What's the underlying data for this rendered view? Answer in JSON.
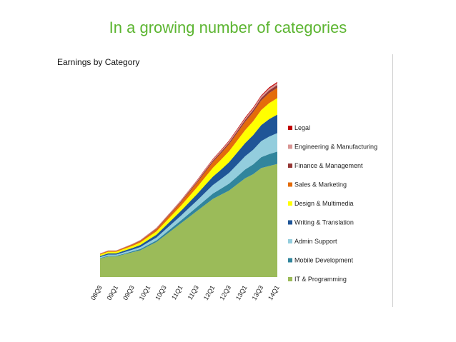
{
  "slide_title": "In a growing number of categories",
  "chart_data": {
    "type": "area",
    "title": "Earnings by Category",
    "stacked": true,
    "xlabel": "",
    "ylabel": "",
    "ylim": [
      0,
      100
    ],
    "legend_placement": "right",
    "grid": false,
    "x": [
      "08Q3",
      "08Q4",
      "09Q1",
      "09Q2",
      "09Q3",
      "09Q4",
      "10Q1",
      "10Q2",
      "10Q3",
      "10Q4",
      "11Q1",
      "11Q2",
      "11Q3",
      "11Q4",
      "12Q1",
      "12Q2",
      "12Q3",
      "12Q4",
      "13Q1",
      "13Q2",
      "13Q3",
      "13Q4",
      "14Q1"
    ],
    "tick_labels": [
      "08Q3",
      "09Q1",
      "09Q3",
      "10Q1",
      "10Q3",
      "11Q1",
      "11Q3",
      "12Q1",
      "12Q3",
      "13Q1",
      "13Q3",
      "14Q1"
    ],
    "tick_label_prefix": "-",
    "series": [
      {
        "name": "IT & Programming",
        "color": "#9bbb59",
        "values": [
          9,
          10,
          10,
          11,
          12,
          13,
          15,
          17,
          20,
          23,
          26,
          29,
          32,
          35,
          38,
          40,
          42,
          45,
          48,
          50,
          53,
          54,
          55
        ]
      },
      {
        "name": "Mobile Development",
        "color": "#31859c",
        "values": [
          0.2,
          0.3,
          0.3,
          0.4,
          0.5,
          0.6,
          0.7,
          0.8,
          1,
          1.2,
          1.4,
          1.7,
          2,
          2.3,
          2.6,
          3,
          3.4,
          3.8,
          4.3,
          4.8,
          5.3,
          5.8,
          6
        ]
      },
      {
        "name": "Admin Support",
        "color": "#93cddd",
        "values": [
          0.5,
          0.6,
          0.6,
          0.7,
          0.8,
          1,
          1.2,
          1.4,
          1.7,
          2,
          2.3,
          2.7,
          3.1,
          3.6,
          4.1,
          4.6,
          5.2,
          5.8,
          6.4,
          7.1,
          7.8,
          8.5,
          9
        ]
      },
      {
        "name": "Writing & Translation",
        "color": "#1f5597",
        "values": [
          0.5,
          0.6,
          0.6,
          0.7,
          0.8,
          1,
          1.2,
          1.4,
          1.7,
          2,
          2.3,
          2.7,
          3.1,
          3.6,
          4.1,
          4.6,
          5.2,
          5.8,
          6.4,
          7.1,
          7.8,
          8.5,
          9
        ]
      },
      {
        "name": "Design & Multimedia",
        "color": "#ffff00",
        "values": [
          0.7,
          0.8,
          0.8,
          0.9,
          1,
          1.2,
          1.4,
          1.6,
          1.9,
          2.2,
          2.5,
          2.9,
          3.3,
          3.8,
          4.3,
          4.8,
          5.3,
          5.8,
          6.3,
          6.8,
          7.3,
          7.8,
          8
        ]
      },
      {
        "name": "Sales & Marketing",
        "color": "#e46c0a",
        "values": [
          0.3,
          0.4,
          0.4,
          0.5,
          0.6,
          0.7,
          0.8,
          1,
          1.2,
          1.4,
          1.6,
          1.9,
          2.2,
          2.5,
          2.8,
          3.1,
          3.4,
          3.7,
          4,
          4.3,
          4.6,
          4.9,
          5
        ]
      },
      {
        "name": "Finance & Management",
        "color": "#953735",
        "values": [
          0.1,
          0.1,
          0.1,
          0.15,
          0.2,
          0.25,
          0.3,
          0.35,
          0.4,
          0.45,
          0.5,
          0.55,
          0.6,
          0.65,
          0.7,
          0.75,
          0.8,
          0.9,
          1,
          1.1,
          1.2,
          1.3,
          1.4
        ]
      },
      {
        "name": "Engineering & Manufacturing",
        "color": "#d99694",
        "values": [
          0.1,
          0.1,
          0.1,
          0.1,
          0.15,
          0.2,
          0.2,
          0.25,
          0.3,
          0.35,
          0.4,
          0.45,
          0.5,
          0.55,
          0.6,
          0.65,
          0.7,
          0.75,
          0.8,
          0.85,
          0.9,
          0.95,
          1
        ]
      },
      {
        "name": "Legal",
        "color": "#c00000",
        "values": [
          0.05,
          0.05,
          0.05,
          0.06,
          0.07,
          0.08,
          0.1,
          0.12,
          0.14,
          0.16,
          0.18,
          0.2,
          0.22,
          0.25,
          0.28,
          0.31,
          0.34,
          0.37,
          0.4,
          0.43,
          0.46,
          0.5,
          0.5
        ]
      }
    ],
    "legend_order": [
      "Legal",
      "Engineering & Manufacturing",
      "Finance & Management",
      "Sales & Marketing",
      "Design & Multimedia",
      "Writing & Translation",
      "Admin Support",
      "Mobile Development",
      "IT & Programming"
    ]
  }
}
